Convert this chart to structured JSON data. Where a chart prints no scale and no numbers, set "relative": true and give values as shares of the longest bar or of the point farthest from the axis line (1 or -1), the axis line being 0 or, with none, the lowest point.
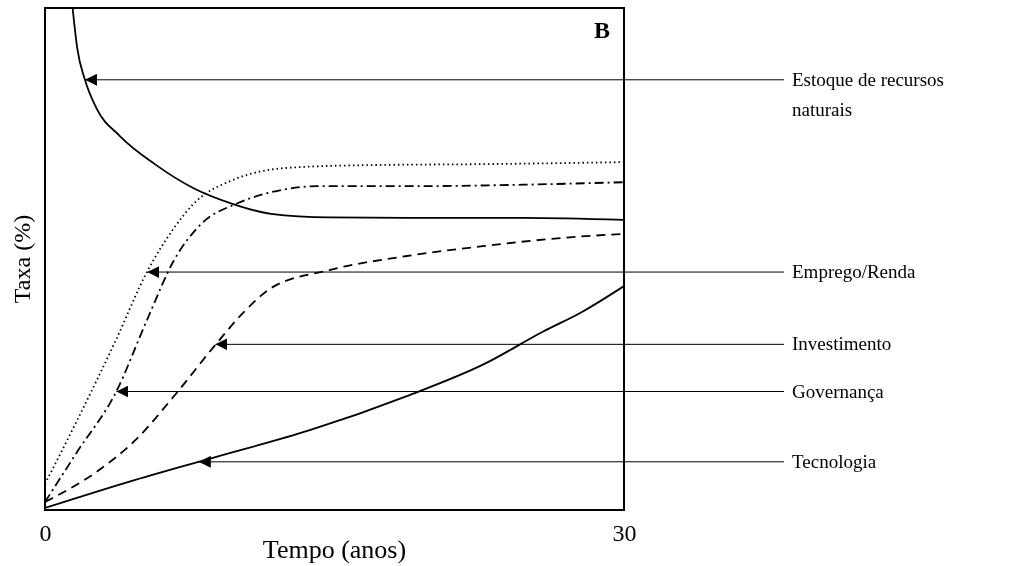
{
  "chart_data": {
    "type": "line",
    "relative": true,
    "xlabel": "Tempo (anos)",
    "ylabel": "Taxa (%)",
    "xlim": [
      0,
      30
    ],
    "xticks": [
      0,
      30
    ],
    "grid": false,
    "marker": "none",
    "series": [
      {
        "color": "#000000",
        "line_style": "solid",
        "x": [
          1.43,
          1.67,
          2.07,
          2.67,
          3.88,
          5.69,
          7.7,
          9.71,
          11.71,
          14.73,
          18.75,
          24.78,
          30
        ],
        "values": [
          1.0,
          0.92,
          0.857,
          0.8,
          0.745,
          0.689,
          0.641,
          0.61,
          0.59,
          0.583,
          0.582,
          0.582,
          0.578
        ]
      },
      {
        "color": "#000000",
        "line_style": "dotted",
        "x": [
          0,
          1.67,
          3.68,
          5.28,
          6.69,
          7.7,
          9.71,
          12.72,
          16.74,
          22.77,
          30
        ],
        "values": [
          0.052,
          0.179,
          0.339,
          0.474,
          0.562,
          0.61,
          0.657,
          0.682,
          0.687,
          0.689,
          0.693
        ]
      },
      {
        "color": "#000000",
        "line_style": "dashdot",
        "x": [
          0,
          1.67,
          3.68,
          5.28,
          6.69,
          8.1,
          9.91,
          11.71,
          14.13,
          18.75,
          24.78,
          30
        ],
        "values": [
          0.016,
          0.116,
          0.235,
          0.378,
          0.498,
          0.57,
          0.61,
          0.633,
          0.645,
          0.645,
          0.648,
          0.653
        ]
      },
      {
        "color": "#000000",
        "line_style": "dashed",
        "x": [
          0,
          2.67,
          4.68,
          6.69,
          8.7,
          10.3,
          11.71,
          14.73,
          18.75,
          22.77,
          26.79,
          30
        ],
        "values": [
          0.016,
          0.076,
          0.139,
          0.227,
          0.323,
          0.394,
          0.442,
          0.478,
          0.506,
          0.526,
          0.542,
          0.55
        ]
      },
      {
        "color": "#000000",
        "line_style": "solid",
        "x": [
          0,
          4.68,
          8.7,
          13.72,
          18.75,
          22.77,
          25.79,
          27.8,
          30
        ],
        "values": [
          0.004,
          0.06,
          0.104,
          0.159,
          0.227,
          0.291,
          0.355,
          0.394,
          0.446
        ]
      }
    ],
    "annotations": [
      "B",
      {
        "text": "Estoque de recursos naturais",
        "x": 2.07,
        "y": 0.857
      },
      {
        "text": "Emprego/Renda",
        "x": 5.3,
        "y": 0.474
      },
      {
        "text": "Investimento",
        "x": 8.83,
        "y": 0.33
      },
      {
        "text": "Governança",
        "x": 3.7,
        "y": 0.236
      },
      {
        "text": "Tecnologia",
        "x": 7.97,
        "y": 0.096
      }
    ]
  }
}
